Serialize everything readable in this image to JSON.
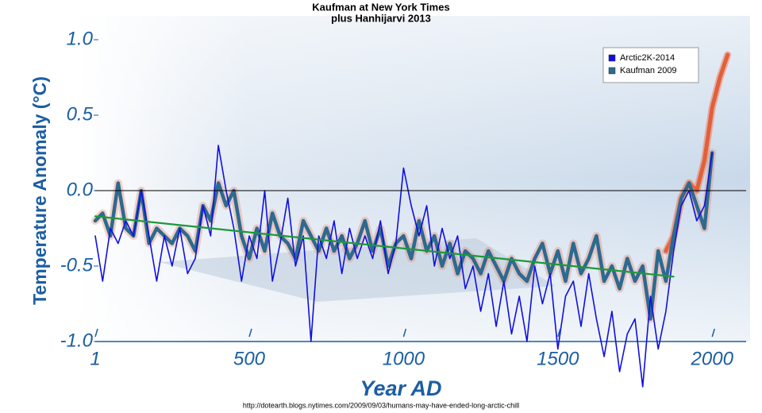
{
  "chart_data": {
    "type": "line",
    "title": "Kaufman at New York Times",
    "subtitle": "plus Hanhijarvi 2013",
    "x_label": "Year AD",
    "y_label": "Temperature Anomaly (°C)",
    "source": "http://dotearth.blogs.nytimes.com/2009/09/03/humans-may-have-ended-long-arctic-chill",
    "xlim": [
      1,
      2110
    ],
    "ylim": [
      -1.0,
      1.0
    ],
    "xticks": [
      1,
      500,
      1000,
      1500,
      2000
    ],
    "yticks": [
      {
        "value": 1,
        "label": "1.0"
      },
      0.5,
      {
        "value": 0,
        "label": "0.0"
      },
      -0.5,
      {
        "value": -1,
        "label": "-1.0"
      }
    ],
    "hline": 0,
    "legend": "upper right",
    "x": [
      1,
      25,
      50,
      75,
      100,
      125,
      150,
      175,
      200,
      225,
      250,
      275,
      300,
      325,
      350,
      375,
      400,
      425,
      450,
      475,
      500,
      525,
      550,
      575,
      600,
      625,
      650,
      675,
      700,
      725,
      750,
      775,
      800,
      825,
      850,
      875,
      900,
      925,
      950,
      975,
      1000,
      1025,
      1050,
      1075,
      1100,
      1125,
      1150,
      1175,
      1200,
      1225,
      1250,
      1275,
      1300,
      1325,
      1350,
      1375,
      1400,
      1425,
      1450,
      1475,
      1500,
      1525,
      1550,
      1575,
      1600,
      1625,
      1650,
      1675,
      1700,
      1725,
      1750,
      1775,
      1800,
      1825,
      1850,
      1875,
      1900,
      1925,
      1950,
      1975,
      2000
    ],
    "series": [
      {
        "name": "Arctic2K-2014",
        "color": "#1010e0",
        "style": "thin",
        "values": [
          -0.3,
          -0.6,
          -0.25,
          -0.35,
          -0.2,
          -0.3,
          0.0,
          -0.3,
          -0.6,
          -0.3,
          -0.5,
          -0.25,
          -0.55,
          -0.45,
          -0.1,
          -0.3,
          0.3,
          0.0,
          -0.25,
          -0.6,
          -0.3,
          -0.45,
          0.0,
          -0.6,
          -0.35,
          -0.05,
          -0.5,
          -0.3,
          -1.0,
          -0.3,
          -0.45,
          -0.2,
          -0.55,
          -0.25,
          -0.45,
          -0.3,
          -0.45,
          -0.2,
          -0.55,
          -0.35,
          0.15,
          -0.1,
          -0.3,
          -0.1,
          -0.5,
          -0.25,
          -0.45,
          -0.3,
          -0.65,
          -0.5,
          -0.8,
          -0.55,
          -0.9,
          -0.6,
          -0.95,
          -0.7,
          -1.0,
          -0.5,
          -0.75,
          -0.55,
          -1.05,
          -0.7,
          -0.6,
          -0.9,
          -0.55,
          -0.85,
          -1.1,
          -0.8,
          -1.2,
          -0.95,
          -0.85,
          -1.3,
          -0.7,
          -1.05,
          -0.8,
          -0.4,
          -0.1,
          0.0,
          -0.2,
          -0.1,
          0.25
        ]
      },
      {
        "name": "Kaufman 2009",
        "color": "#2d6a8f",
        "style": "thick",
        "values": [
          -0.2,
          -0.15,
          -0.3,
          0.05,
          -0.25,
          -0.3,
          0.0,
          -0.35,
          -0.25,
          -0.3,
          -0.35,
          -0.25,
          -0.3,
          -0.4,
          -0.1,
          -0.2,
          0.05,
          -0.1,
          0.0,
          -0.3,
          -0.45,
          -0.25,
          -0.4,
          -0.15,
          -0.3,
          -0.35,
          -0.45,
          -0.2,
          -0.3,
          -0.4,
          -0.25,
          -0.4,
          -0.3,
          -0.45,
          -0.35,
          -0.2,
          -0.4,
          -0.25,
          -0.5,
          -0.35,
          -0.3,
          -0.45,
          -0.2,
          -0.4,
          -0.3,
          -0.5,
          -0.35,
          -0.55,
          -0.4,
          -0.45,
          -0.55,
          -0.4,
          -0.5,
          -0.6,
          -0.45,
          -0.55,
          -0.6,
          -0.45,
          -0.35,
          -0.55,
          -0.4,
          -0.6,
          -0.35,
          -0.55,
          -0.45,
          -0.3,
          -0.6,
          -0.5,
          -0.65,
          -0.45,
          -0.6,
          -0.5,
          -0.85,
          -0.4,
          -0.6,
          -0.3,
          -0.05,
          0.05,
          -0.1,
          -0.25,
          0.25
        ]
      },
      {
        "color": "#e0603a",
        "style": "glow",
        "x": [
          1850,
          1875,
          1900,
          1925,
          1950,
          1975,
          2000,
          2025,
          2050
        ],
        "values": [
          -0.4,
          -0.3,
          -0.05,
          0.05,
          0.0,
          0.2,
          0.55,
          0.75,
          0.9
        ]
      },
      {
        "color": "#1a9a3a",
        "style": "trend",
        "x": [
          1,
          1875
        ],
        "values": [
          -0.17,
          -0.57
        ]
      }
    ]
  }
}
